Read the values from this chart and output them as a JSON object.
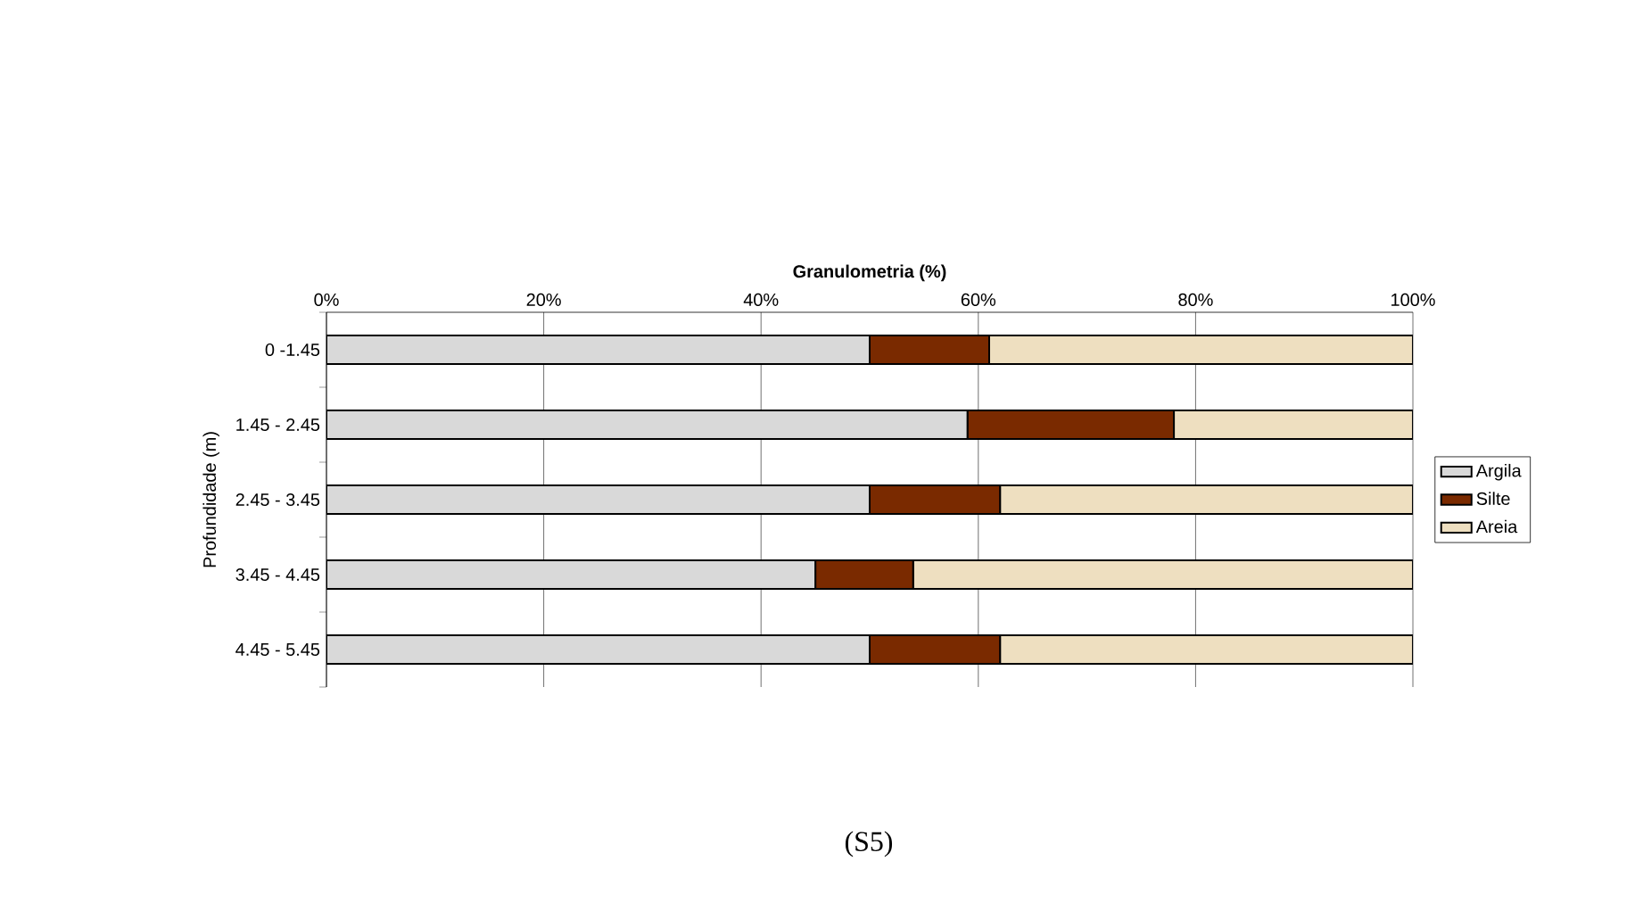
{
  "chart_data": {
    "type": "bar",
    "orientation": "horizontal",
    "stacked": true,
    "xlabel": "Granulometria (%)",
    "ylabel": "Profundidade (m)",
    "categories": [
      "0 -1.45",
      "1.45 - 2.45",
      "2.45 - 3.45",
      "3.45 - 4.45",
      "4.45 - 5.45"
    ],
    "series": [
      {
        "name": "Argila",
        "color": "#d9d9d9",
        "values": [
          50,
          59,
          50,
          45,
          50
        ]
      },
      {
        "name": "Silte",
        "color": "#7a2a00",
        "values": [
          11,
          19,
          12,
          9,
          12
        ]
      },
      {
        "name": "Areia",
        "color": "#eedfc0",
        "values": [
          39,
          22,
          38,
          46,
          38
        ]
      }
    ],
    "xlim": [
      0,
      100
    ],
    "xticks": [
      {
        "value": 0,
        "label": "0%"
      },
      {
        "value": 20,
        "label": "20%"
      },
      {
        "value": 40,
        "label": "40%"
      },
      {
        "value": 60,
        "label": "60%"
      },
      {
        "value": 80,
        "label": "80%"
      },
      {
        "value": 100,
        "label": "100%"
      }
    ],
    "grid": "x",
    "legend": "right",
    "annotations": [
      "(S5)"
    ]
  }
}
